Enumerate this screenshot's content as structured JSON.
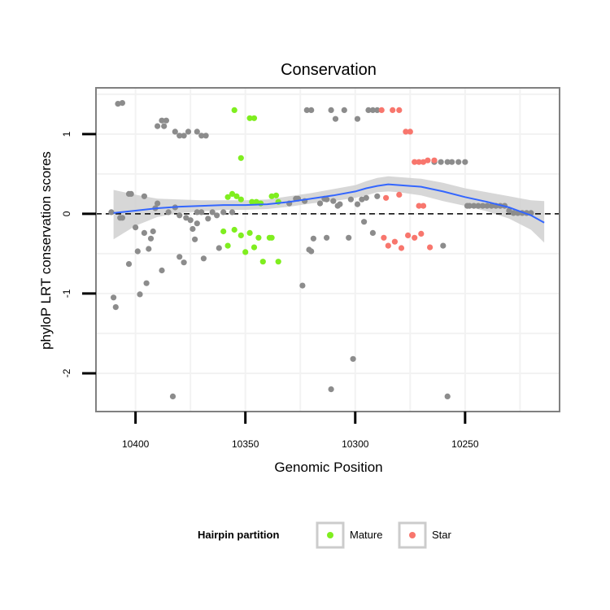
{
  "chart_data": {
    "type": "scatter",
    "title": "Conservation",
    "xlabel": "Genomic Position",
    "ylabel": "phyloP LRT conservation scores",
    "xlim": [
      10418,
      10207
    ],
    "x_reversed": true,
    "ylim": [
      -2.48,
      1.58
    ],
    "x_ticks": [
      10400,
      10350,
      10300,
      10250
    ],
    "x_tick_labels": [
      "10400",
      "10350",
      "10300",
      "10250"
    ],
    "y_ticks": [
      -2,
      -1,
      0,
      1
    ],
    "y_tick_labels": [
      "-2",
      "-1",
      "0",
      "1"
    ],
    "grid": true,
    "reference_line": {
      "y": 0,
      "style": "dashed"
    },
    "legend": {
      "title": "Hairpin partition",
      "placement": "bottom",
      "entries": [
        {
          "label": "Mature",
          "color": "#7fee1f"
        },
        {
          "label": "Star",
          "color": "#f8766d"
        }
      ]
    },
    "colors": {
      "other": "#8c8c8c",
      "mature": "#7fee1f",
      "star": "#f8766d",
      "smooth": "#3366ff",
      "band": "#d0d0d0"
    },
    "series": [
      {
        "name": "Other",
        "points": [
          [
            10408,
            1.38
          ],
          [
            10406,
            1.39
          ],
          [
            10388,
            1.17
          ],
          [
            10386,
            1.17
          ],
          [
            10390,
            1.1
          ],
          [
            10387,
            1.1
          ],
          [
            10382,
            1.03
          ],
          [
            10380,
            0.98
          ],
          [
            10378,
            0.98
          ],
          [
            10376,
            1.03
          ],
          [
            10372,
            1.03
          ],
          [
            10370,
            0.98
          ],
          [
            10368,
            0.98
          ],
          [
            10322,
            1.3
          ],
          [
            10320,
            1.3
          ],
          [
            10311,
            1.3
          ],
          [
            10309,
            1.19
          ],
          [
            10305,
            1.3
          ],
          [
            10299,
            1.19
          ],
          [
            10294,
            1.3
          ],
          [
            10292,
            1.3
          ],
          [
            10290,
            1.3
          ],
          [
            10264,
            0.65
          ],
          [
            10261,
            0.65
          ],
          [
            10258,
            0.65
          ],
          [
            10256,
            0.65
          ],
          [
            10253,
            0.65
          ],
          [
            10250,
            0.65
          ],
          [
            10410,
            -1.05
          ],
          [
            10409,
            -1.17
          ],
          [
            10411,
            0.02
          ],
          [
            10407,
            -0.05
          ],
          [
            10406,
            -0.05
          ],
          [
            10403,
            -0.63
          ],
          [
            10403,
            0.25
          ],
          [
            10402,
            0.25
          ],
          [
            10400,
            -0.17
          ],
          [
            10399,
            -0.47
          ],
          [
            10398,
            -1.01
          ],
          [
            10396,
            -0.24
          ],
          [
            10396,
            0.22
          ],
          [
            10395,
            -0.87
          ],
          [
            10394,
            -0.44
          ],
          [
            10393,
            -0.31
          ],
          [
            10392,
            -0.22
          ],
          [
            10391,
            0.07
          ],
          [
            10390,
            0.13
          ],
          [
            10388,
            -0.71
          ],
          [
            10385,
            0.02
          ],
          [
            10383,
            -2.29
          ],
          [
            10382,
            0.08
          ],
          [
            10380,
            -0.54
          ],
          [
            10380,
            -0.02
          ],
          [
            10378,
            -0.61
          ],
          [
            10377,
            -0.05
          ],
          [
            10375,
            -0.08
          ],
          [
            10374,
            -0.19
          ],
          [
            10373,
            -0.32
          ],
          [
            10372,
            -0.12
          ],
          [
            10372,
            0.02
          ],
          [
            10370,
            0.02
          ],
          [
            10369,
            -0.56
          ],
          [
            10367,
            -0.06
          ],
          [
            10365,
            0.02
          ],
          [
            10363,
            -0.02
          ],
          [
            10362,
            -0.43
          ],
          [
            10360,
            0.02
          ],
          [
            10356,
            0.02
          ],
          [
            10330,
            0.13
          ],
          [
            10327,
            0.19
          ],
          [
            10326,
            0.19
          ],
          [
            10324,
            -0.9
          ],
          [
            10323,
            0.16
          ],
          [
            10321,
            -0.45
          ],
          [
            10320,
            -0.47
          ],
          [
            10319,
            -0.31
          ],
          [
            10316,
            0.13
          ],
          [
            10314,
            0.19
          ],
          [
            10313,
            0.18
          ],
          [
            10313,
            -0.3
          ],
          [
            10311,
            -2.2
          ],
          [
            10310,
            0.16
          ],
          [
            10308,
            0.1
          ],
          [
            10307,
            0.12
          ],
          [
            10303,
            -0.3
          ],
          [
            10302,
            0.18
          ],
          [
            10301,
            -1.82
          ],
          [
            10299,
            0.12
          ],
          [
            10297,
            0.18
          ],
          [
            10296,
            -0.1
          ],
          [
            10295,
            0.2
          ],
          [
            10292,
            -0.24
          ],
          [
            10290,
            0.22
          ],
          [
            10260,
            -0.4
          ],
          [
            10258,
            -2.29
          ],
          [
            10249,
            0.1
          ],
          [
            10248,
            0.1
          ],
          [
            10246,
            0.1
          ],
          [
            10244,
            0.1
          ],
          [
            10242,
            0.1
          ],
          [
            10240,
            0.1
          ],
          [
            10238,
            0.1
          ],
          [
            10236,
            0.1
          ],
          [
            10234,
            0.1
          ],
          [
            10232,
            0.1
          ],
          [
            10230,
            0.04
          ],
          [
            10228,
            0.01
          ],
          [
            10226,
            0.01
          ],
          [
            10224,
            0.01
          ],
          [
            10222,
            0.01
          ],
          [
            10220,
            0.01
          ]
        ]
      },
      {
        "name": "Mature",
        "points": [
          [
            10355,
            1.3
          ],
          [
            10348,
            1.2
          ],
          [
            10346,
            1.2
          ],
          [
            10352,
            0.7
          ],
          [
            10358,
            0.21
          ],
          [
            10356,
            0.25
          ],
          [
            10354,
            0.22
          ],
          [
            10352,
            0.18
          ],
          [
            10347,
            0.15
          ],
          [
            10345,
            0.15
          ],
          [
            10343,
            0.13
          ],
          [
            10338,
            0.22
          ],
          [
            10336,
            0.23
          ],
          [
            10335,
            0.15
          ],
          [
            10360,
            -0.22
          ],
          [
            10358,
            -0.4
          ],
          [
            10355,
            -0.2
          ],
          [
            10352,
            -0.27
          ],
          [
            10350,
            -0.48
          ],
          [
            10348,
            -0.24
          ],
          [
            10346,
            -0.42
          ],
          [
            10344,
            -0.3
          ],
          [
            10342,
            -0.6
          ],
          [
            10339,
            -0.3
          ],
          [
            10338,
            -0.3
          ],
          [
            10335,
            -0.6
          ]
        ]
      },
      {
        "name": "Star",
        "points": [
          [
            10288,
            1.3
          ],
          [
            10283,
            1.3
          ],
          [
            10280,
            1.3
          ],
          [
            10277,
            1.03
          ],
          [
            10275,
            1.03
          ],
          [
            10273,
            0.65
          ],
          [
            10271,
            0.65
          ],
          [
            10269,
            0.65
          ],
          [
            10267,
            0.67
          ],
          [
            10264,
            0.67
          ],
          [
            10271,
            0.1
          ],
          [
            10269,
            0.1
          ],
          [
            10286,
            0.2
          ],
          [
            10280,
            0.24
          ],
          [
            10287,
            -0.3
          ],
          [
            10285,
            -0.4
          ],
          [
            10282,
            -0.35
          ],
          [
            10279,
            -0.43
          ],
          [
            10276,
            -0.27
          ],
          [
            10273,
            -0.3
          ],
          [
            10270,
            -0.25
          ],
          [
            10266,
            -0.42
          ]
        ]
      }
    ],
    "smooth": {
      "x": [
        10410,
        10400,
        10390,
        10380,
        10370,
        10360,
        10350,
        10340,
        10330,
        10320,
        10310,
        10300,
        10295,
        10290,
        10285,
        10280,
        10270,
        10260,
        10250,
        10240,
        10230,
        10220,
        10214
      ],
      "y": [
        0.01,
        0.04,
        0.07,
        0.09,
        0.1,
        0.11,
        0.11,
        0.12,
        0.15,
        0.19,
        0.23,
        0.28,
        0.32,
        0.35,
        0.37,
        0.36,
        0.34,
        0.28,
        0.21,
        0.15,
        0.08,
        -0.02,
        -0.11
      ],
      "lower": [
        -0.32,
        -0.15,
        -0.04,
        0.01,
        0.03,
        0.05,
        0.05,
        0.06,
        0.09,
        0.13,
        0.16,
        0.2,
        0.23,
        0.27,
        0.28,
        0.27,
        0.23,
        0.16,
        0.1,
        0.03,
        -0.06,
        -0.2,
        -0.36
      ],
      "upper": [
        0.3,
        0.24,
        0.19,
        0.18,
        0.17,
        0.17,
        0.17,
        0.18,
        0.22,
        0.26,
        0.31,
        0.36,
        0.41,
        0.45,
        0.47,
        0.46,
        0.44,
        0.39,
        0.32,
        0.27,
        0.22,
        0.17,
        0.16
      ]
    }
  }
}
